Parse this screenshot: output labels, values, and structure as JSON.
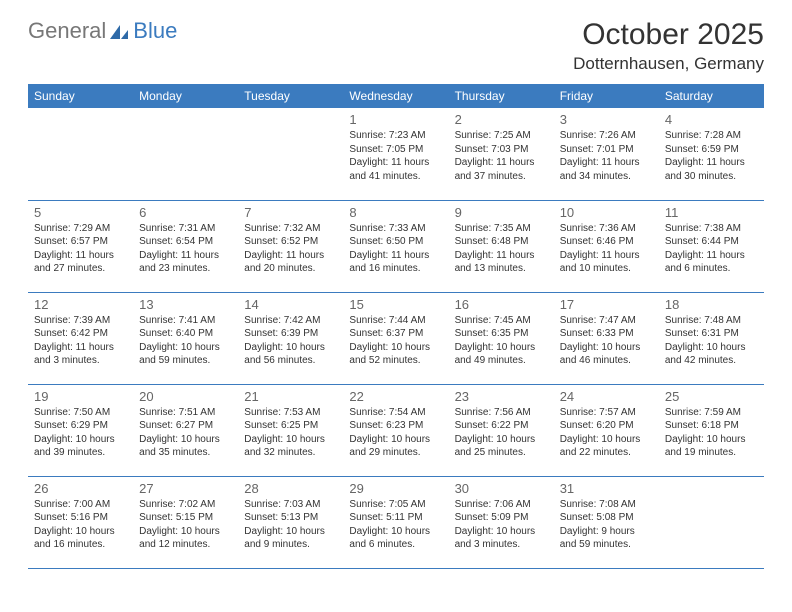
{
  "brand": {
    "word1": "General",
    "word2": "Blue"
  },
  "title": "October 2025",
  "location": "Dotternhausen, Germany",
  "accent_color": "#3b7bbf",
  "text_color": "#333333",
  "day_headers": [
    "Sunday",
    "Monday",
    "Tuesday",
    "Wednesday",
    "Thursday",
    "Friday",
    "Saturday"
  ],
  "weeks": [
    [
      null,
      null,
      null,
      {
        "n": "1",
        "sunrise": "Sunrise: 7:23 AM",
        "sunset": "Sunset: 7:05 PM",
        "day": "Daylight: 11 hours and 41 minutes."
      },
      {
        "n": "2",
        "sunrise": "Sunrise: 7:25 AM",
        "sunset": "Sunset: 7:03 PM",
        "day": "Daylight: 11 hours and 37 minutes."
      },
      {
        "n": "3",
        "sunrise": "Sunrise: 7:26 AM",
        "sunset": "Sunset: 7:01 PM",
        "day": "Daylight: 11 hours and 34 minutes."
      },
      {
        "n": "4",
        "sunrise": "Sunrise: 7:28 AM",
        "sunset": "Sunset: 6:59 PM",
        "day": "Daylight: 11 hours and 30 minutes."
      }
    ],
    [
      {
        "n": "5",
        "sunrise": "Sunrise: 7:29 AM",
        "sunset": "Sunset: 6:57 PM",
        "day": "Daylight: 11 hours and 27 minutes."
      },
      {
        "n": "6",
        "sunrise": "Sunrise: 7:31 AM",
        "sunset": "Sunset: 6:54 PM",
        "day": "Daylight: 11 hours and 23 minutes."
      },
      {
        "n": "7",
        "sunrise": "Sunrise: 7:32 AM",
        "sunset": "Sunset: 6:52 PM",
        "day": "Daylight: 11 hours and 20 minutes."
      },
      {
        "n": "8",
        "sunrise": "Sunrise: 7:33 AM",
        "sunset": "Sunset: 6:50 PM",
        "day": "Daylight: 11 hours and 16 minutes."
      },
      {
        "n": "9",
        "sunrise": "Sunrise: 7:35 AM",
        "sunset": "Sunset: 6:48 PM",
        "day": "Daylight: 11 hours and 13 minutes."
      },
      {
        "n": "10",
        "sunrise": "Sunrise: 7:36 AM",
        "sunset": "Sunset: 6:46 PM",
        "day": "Daylight: 11 hours and 10 minutes."
      },
      {
        "n": "11",
        "sunrise": "Sunrise: 7:38 AM",
        "sunset": "Sunset: 6:44 PM",
        "day": "Daylight: 11 hours and 6 minutes."
      }
    ],
    [
      {
        "n": "12",
        "sunrise": "Sunrise: 7:39 AM",
        "sunset": "Sunset: 6:42 PM",
        "day": "Daylight: 11 hours and 3 minutes."
      },
      {
        "n": "13",
        "sunrise": "Sunrise: 7:41 AM",
        "sunset": "Sunset: 6:40 PM",
        "day": "Daylight: 10 hours and 59 minutes."
      },
      {
        "n": "14",
        "sunrise": "Sunrise: 7:42 AM",
        "sunset": "Sunset: 6:39 PM",
        "day": "Daylight: 10 hours and 56 minutes."
      },
      {
        "n": "15",
        "sunrise": "Sunrise: 7:44 AM",
        "sunset": "Sunset: 6:37 PM",
        "day": "Daylight: 10 hours and 52 minutes."
      },
      {
        "n": "16",
        "sunrise": "Sunrise: 7:45 AM",
        "sunset": "Sunset: 6:35 PM",
        "day": "Daylight: 10 hours and 49 minutes."
      },
      {
        "n": "17",
        "sunrise": "Sunrise: 7:47 AM",
        "sunset": "Sunset: 6:33 PM",
        "day": "Daylight: 10 hours and 46 minutes."
      },
      {
        "n": "18",
        "sunrise": "Sunrise: 7:48 AM",
        "sunset": "Sunset: 6:31 PM",
        "day": "Daylight: 10 hours and 42 minutes."
      }
    ],
    [
      {
        "n": "19",
        "sunrise": "Sunrise: 7:50 AM",
        "sunset": "Sunset: 6:29 PM",
        "day": "Daylight: 10 hours and 39 minutes."
      },
      {
        "n": "20",
        "sunrise": "Sunrise: 7:51 AM",
        "sunset": "Sunset: 6:27 PM",
        "day": "Daylight: 10 hours and 35 minutes."
      },
      {
        "n": "21",
        "sunrise": "Sunrise: 7:53 AM",
        "sunset": "Sunset: 6:25 PM",
        "day": "Daylight: 10 hours and 32 minutes."
      },
      {
        "n": "22",
        "sunrise": "Sunrise: 7:54 AM",
        "sunset": "Sunset: 6:23 PM",
        "day": "Daylight: 10 hours and 29 minutes."
      },
      {
        "n": "23",
        "sunrise": "Sunrise: 7:56 AM",
        "sunset": "Sunset: 6:22 PM",
        "day": "Daylight: 10 hours and 25 minutes."
      },
      {
        "n": "24",
        "sunrise": "Sunrise: 7:57 AM",
        "sunset": "Sunset: 6:20 PM",
        "day": "Daylight: 10 hours and 22 minutes."
      },
      {
        "n": "25",
        "sunrise": "Sunrise: 7:59 AM",
        "sunset": "Sunset: 6:18 PM",
        "day": "Daylight: 10 hours and 19 minutes."
      }
    ],
    [
      {
        "n": "26",
        "sunrise": "Sunrise: 7:00 AM",
        "sunset": "Sunset: 5:16 PM",
        "day": "Daylight: 10 hours and 16 minutes."
      },
      {
        "n": "27",
        "sunrise": "Sunrise: 7:02 AM",
        "sunset": "Sunset: 5:15 PM",
        "day": "Daylight: 10 hours and 12 minutes."
      },
      {
        "n": "28",
        "sunrise": "Sunrise: 7:03 AM",
        "sunset": "Sunset: 5:13 PM",
        "day": "Daylight: 10 hours and 9 minutes."
      },
      {
        "n": "29",
        "sunrise": "Sunrise: 7:05 AM",
        "sunset": "Sunset: 5:11 PM",
        "day": "Daylight: 10 hours and 6 minutes."
      },
      {
        "n": "30",
        "sunrise": "Sunrise: 7:06 AM",
        "sunset": "Sunset: 5:09 PM",
        "day": "Daylight: 10 hours and 3 minutes."
      },
      {
        "n": "31",
        "sunrise": "Sunrise: 7:08 AM",
        "sunset": "Sunset: 5:08 PM",
        "day": "Daylight: 9 hours and 59 minutes."
      },
      null
    ]
  ]
}
